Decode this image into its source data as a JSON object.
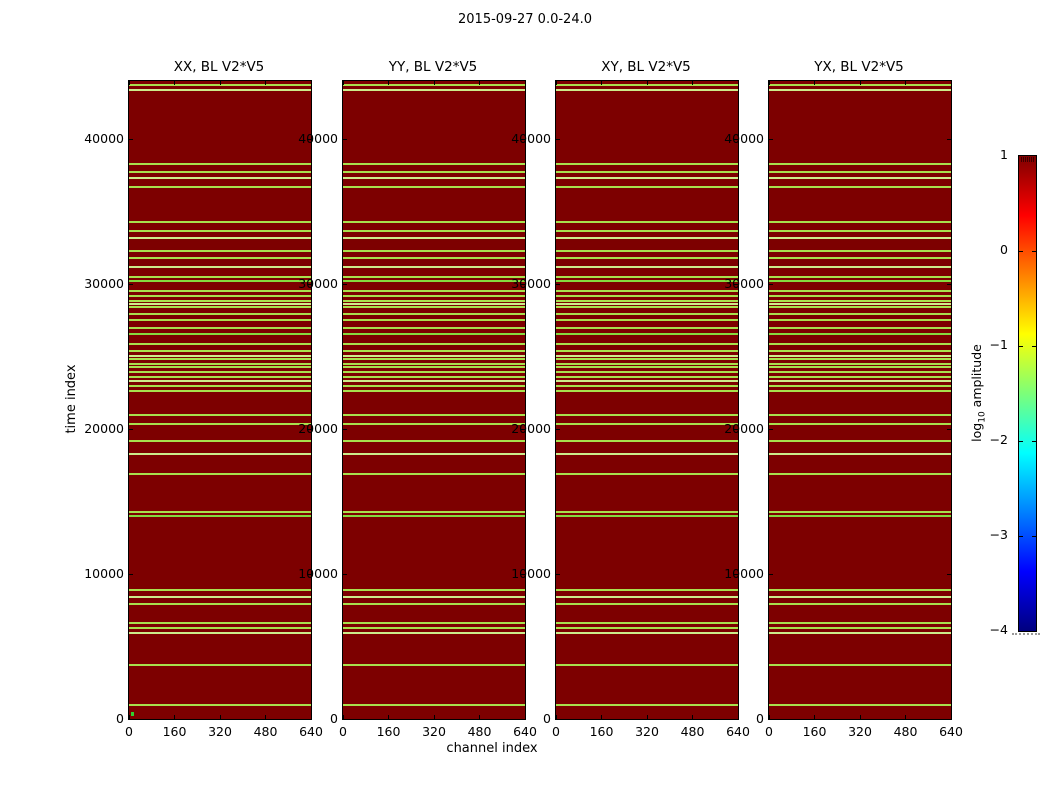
{
  "chart_data": {
    "type": "heatmap",
    "title": "2015-09-27 0.0-24.0",
    "xlabel": "channel index",
    "ylabel": "time index",
    "panels": [
      {
        "title": "XX, BL V2*V5"
      },
      {
        "title": "YY, BL V2*V5"
      },
      {
        "title": "XY, BL V2*V5"
      },
      {
        "title": "YX, BL V2*V5"
      }
    ],
    "x_axis": {
      "range": [
        0,
        640
      ],
      "ticks": [
        {
          "value": 0,
          "label": "0"
        },
        {
          "value": 160,
          "label": "160"
        },
        {
          "value": 320,
          "label": "320"
        },
        {
          "value": 480,
          "label": "480"
        },
        {
          "value": 640,
          "label": "640"
        }
      ]
    },
    "y_axis": {
      "range": [
        0,
        44000
      ],
      "ticks": [
        {
          "value": 0,
          "label": "0"
        },
        {
          "value": 10000,
          "label": "10000"
        },
        {
          "value": 20000,
          "label": "20000"
        },
        {
          "value": 30000,
          "label": "30000"
        },
        {
          "value": 40000,
          "label": "40000"
        }
      ]
    },
    "background_color": "#7d0000",
    "flagged_rows": {
      "color_palette": [
        "#a8e04d",
        "#cdeb8a",
        "#86d93f"
      ],
      "rows": [
        [
          43700,
          0
        ],
        [
          43350,
          1
        ],
        [
          38250,
          0
        ],
        [
          37750,
          0
        ],
        [
          37300,
          1
        ],
        [
          36700,
          0
        ],
        [
          34250,
          0
        ],
        [
          33650,
          0
        ],
        [
          33200,
          1
        ],
        [
          32300,
          0
        ],
        [
          31800,
          0
        ],
        [
          31150,
          1
        ],
        [
          30500,
          0
        ],
        [
          30200,
          2
        ],
        [
          29500,
          0
        ],
        [
          29150,
          0
        ],
        [
          28850,
          0
        ],
        [
          28600,
          1
        ],
        [
          28400,
          0
        ],
        [
          27900,
          0
        ],
        [
          27550,
          0
        ],
        [
          27000,
          0
        ],
        [
          26550,
          2
        ],
        [
          25850,
          0
        ],
        [
          25350,
          0
        ],
        [
          25050,
          1
        ],
        [
          24800,
          0
        ],
        [
          24500,
          0
        ],
        [
          24250,
          0
        ],
        [
          23900,
          0
        ],
        [
          23600,
          0
        ],
        [
          23300,
          1
        ],
        [
          22950,
          0
        ],
        [
          22600,
          0
        ],
        [
          21000,
          0
        ],
        [
          20350,
          0
        ],
        [
          19150,
          0
        ],
        [
          18250,
          1
        ],
        [
          16900,
          0
        ],
        [
          14300,
          0
        ],
        [
          14000,
          2
        ],
        [
          8900,
          0
        ],
        [
          8400,
          1
        ],
        [
          7900,
          0
        ],
        [
          6600,
          0
        ],
        [
          6300,
          0
        ],
        [
          5900,
          1
        ],
        [
          3700,
          0
        ],
        [
          1000,
          0
        ]
      ]
    },
    "marker": {
      "panel": 0,
      "channel": 6,
      "time": 350,
      "color": "#2fd12f"
    },
    "colorbar": {
      "colormap": "jet",
      "range": [
        -4,
        1
      ],
      "label_parts": [
        "log",
        "10",
        " amplitude"
      ],
      "ticks": [
        {
          "value": 1,
          "label": "1"
        },
        {
          "value": 0,
          "label": "0"
        },
        {
          "value": -1,
          "label": "−1"
        },
        {
          "value": -2,
          "label": "−2"
        },
        {
          "value": -3,
          "label": "−3"
        },
        {
          "value": -4,
          "label": "−4"
        }
      ]
    }
  }
}
